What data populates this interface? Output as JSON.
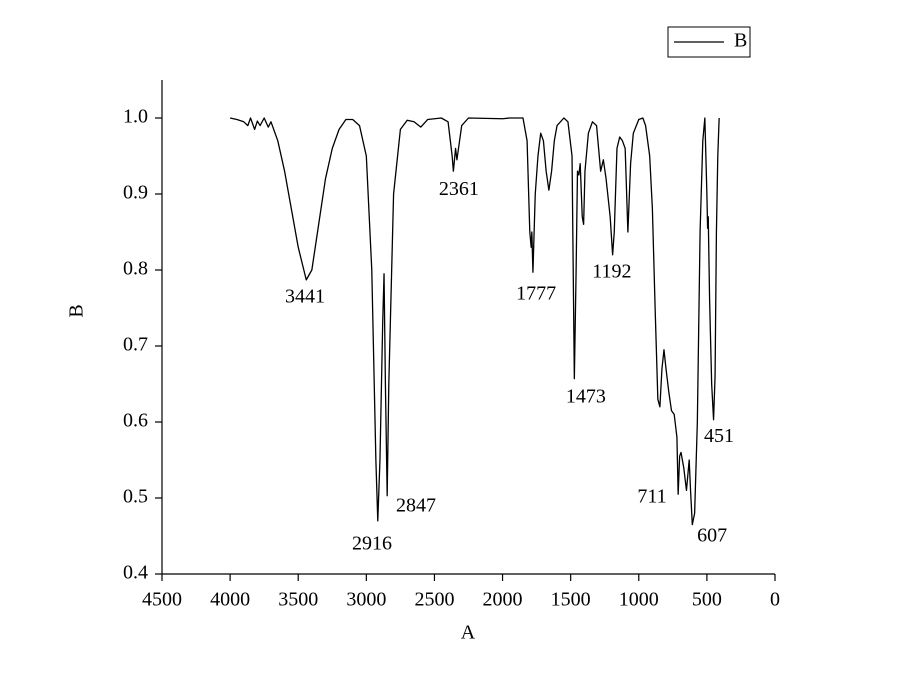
{
  "chart_data": {
    "type": "line",
    "x_label": "A",
    "y_label": "B",
    "xlim": [
      4500,
      0
    ],
    "xticks": [
      4500,
      4000,
      3500,
      3000,
      2500,
      2000,
      1500,
      1000,
      500,
      0
    ],
    "ylim": [
      0.4,
      1.05
    ],
    "yticks": [
      0.4,
      0.5,
      0.6,
      0.7,
      0.8,
      0.9,
      {
        "value": 1.0,
        "label": "1.0"
      }
    ],
    "legend": "top-right",
    "series": [
      {
        "name": "B",
        "color": "#000000",
        "x": [
          4000,
          3950,
          3900,
          3870,
          3850,
          3820,
          3800,
          3780,
          3750,
          3720,
          3700,
          3650,
          3600,
          3550,
          3500,
          3441,
          3400,
          3350,
          3300,
          3250,
          3200,
          3150,
          3100,
          3050,
          3000,
          2960,
          2930,
          2916,
          2900,
          2880,
          2870,
          2860,
          2847,
          2835,
          2800,
          2750,
          2700,
          2650,
          2600,
          2550,
          2450,
          2400,
          2370,
          2361,
          2345,
          2335,
          2300,
          2250,
          2000,
          1950,
          1850,
          1820,
          1800,
          1790,
          1785,
          1777,
          1760,
          1740,
          1720,
          1700,
          1680,
          1660,
          1640,
          1620,
          1600,
          1550,
          1520,
          1490,
          1473,
          1460,
          1450,
          1440,
          1430,
          1415,
          1405,
          1395,
          1370,
          1340,
          1310,
          1280,
          1260,
          1240,
          1210,
          1192,
          1180,
          1160,
          1140,
          1120,
          1100,
          1080,
          1060,
          1040,
          1000,
          970,
          950,
          920,
          900,
          880,
          860,
          845,
          830,
          815,
          800,
          780,
          760,
          740,
          720,
          711,
          700,
          690,
          670,
          650,
          630,
          620,
          607,
          590,
          570,
          550,
          530,
          515,
          500,
          495,
          490,
          480,
          465,
          451,
          440,
          430,
          420,
          410
        ],
        "values": [
          1.0,
          0.998,
          0.995,
          0.99,
          1.0,
          0.985,
          0.996,
          0.99,
          1.0,
          0.988,
          0.995,
          0.97,
          0.93,
          0.88,
          0.83,
          0.787,
          0.8,
          0.86,
          0.92,
          0.96,
          0.985,
          0.998,
          0.998,
          0.99,
          0.95,
          0.8,
          0.55,
          0.47,
          0.55,
          0.73,
          0.795,
          0.65,
          0.503,
          0.65,
          0.9,
          0.985,
          0.997,
          0.995,
          0.988,
          0.998,
          1.0,
          0.995,
          0.95,
          0.93,
          0.96,
          0.945,
          0.99,
          1.0,
          0.999,
          1.0,
          1.0,
          0.97,
          0.85,
          0.83,
          0.85,
          0.797,
          0.9,
          0.95,
          0.98,
          0.97,
          0.93,
          0.905,
          0.93,
          0.97,
          0.99,
          1.0,
          0.995,
          0.95,
          0.657,
          0.8,
          0.93,
          0.925,
          0.94,
          0.87,
          0.86,
          0.93,
          0.98,
          0.995,
          0.99,
          0.93,
          0.945,
          0.92,
          0.87,
          0.82,
          0.85,
          0.96,
          0.975,
          0.97,
          0.96,
          0.85,
          0.94,
          0.98,
          0.998,
          1.0,
          0.99,
          0.95,
          0.88,
          0.75,
          0.63,
          0.62,
          0.67,
          0.695,
          0.67,
          0.64,
          0.615,
          0.61,
          0.58,
          0.505,
          0.555,
          0.56,
          0.54,
          0.51,
          0.55,
          0.51,
          0.465,
          0.48,
          0.6,
          0.85,
          0.97,
          1.0,
          0.9,
          0.855,
          0.87,
          0.76,
          0.65,
          0.603,
          0.66,
          0.85,
          0.95,
          1.0
        ]
      }
    ],
    "annotations": [
      {
        "text": "3441",
        "x": 3450,
        "y": 0.763
      },
      {
        "text": "2916",
        "x": 2958,
        "y": 0.438
      },
      {
        "text": "2847",
        "x": 2635,
        "y": 0.488
      },
      {
        "text": "2361",
        "x": 2321,
        "y": 0.905
      },
      {
        "text": "1777",
        "x": 1754,
        "y": 0.767
      },
      {
        "text": "1192",
        "x": 1197,
        "y": 0.796
      },
      {
        "text": "1473",
        "x": 1388,
        "y": 0.632
      },
      {
        "text": "711",
        "x": 903,
        "y": 0.5
      },
      {
        "text": "451",
        "x": 411,
        "y": 0.58
      },
      {
        "text": "607",
        "x": 462,
        "y": 0.449
      }
    ]
  }
}
